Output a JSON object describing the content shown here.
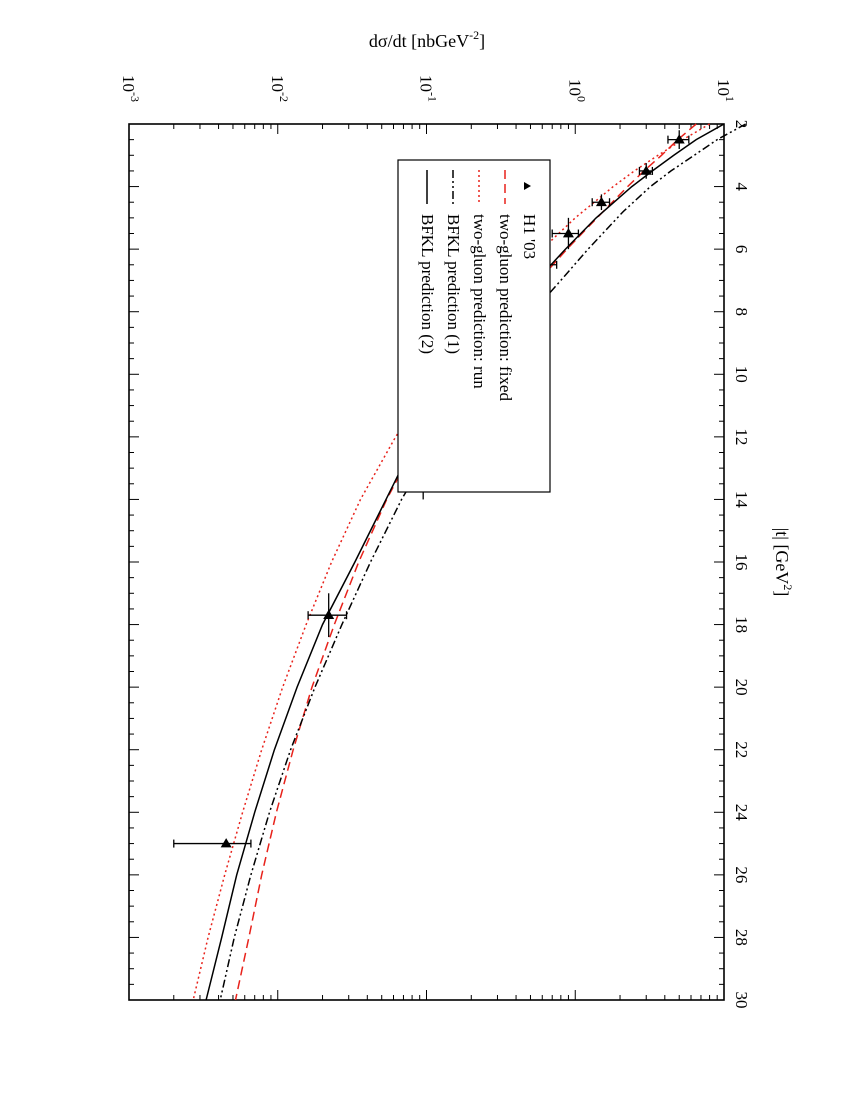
{
  "chart_data": {
    "type": "line",
    "orientation": "rotated 90 degrees clockwise",
    "xlabel": {
      "main": "|t|   [GeV",
      "sup": "2",
      "tail": "]"
    },
    "ylabel": {
      "main": "dσ/dt    [nbGeV",
      "sup": "-2",
      "tail": "]"
    },
    "xlim": [
      2,
      30
    ],
    "ylim": [
      0.001,
      10
    ],
    "yscale": "log",
    "x_ticks": [
      "2",
      "4",
      "6",
      "8",
      "10",
      "12",
      "14",
      "16",
      "18",
      "20",
      "22",
      "24",
      "26",
      "28",
      "30"
    ],
    "y_ticks": [
      {
        "base": "10",
        "exp": "-3"
      },
      {
        "base": "10",
        "exp": "-2"
      },
      {
        "base": "10",
        "exp": "-1"
      },
      {
        "base": "10",
        "exp": "0"
      },
      {
        "base": "10",
        "exp": "1"
      }
    ],
    "legend_position": "top-left",
    "series": [
      {
        "name": "H1 '03",
        "style": "points",
        "color": "#000000",
        "points": [
          {
            "x": 2.5,
            "y": 5.0,
            "yerr": [
              4.2,
              5.8
            ],
            "xerr": [
              2.2,
              2.8
            ]
          },
          {
            "x": 3.5,
            "y": 3.0,
            "yerr": [
              2.7,
              3.3
            ],
            "xerr": [
              3.25,
              3.75
            ]
          },
          {
            "x": 4.5,
            "y": 1.5,
            "yerr": [
              1.3,
              1.7
            ],
            "xerr": [
              4.25,
              4.75
            ]
          },
          {
            "x": 5.5,
            "y": 0.9,
            "yerr": [
              0.7,
              1.05
            ],
            "xerr": [
              5.0,
              6.0
            ]
          },
          {
            "x": 6.5,
            "y": 0.6,
            "yerr": [
              0.47,
              0.75
            ],
            "xerr": [
              6.0,
              7.0
            ]
          },
          {
            "x": 7.95,
            "y": 0.28,
            "yerr": [
              0.23,
              0.33
            ],
            "xerr": [
              7.0,
              9.0
            ]
          },
          {
            "x": 10.4,
            "y": 0.145,
            "yerr": [
              0.12,
              0.17
            ],
            "xerr": [
              9.9,
              10.9
            ]
          },
          {
            "x": 13.4,
            "y": 0.095,
            "yerr": [
              0.075,
              0.11
            ],
            "xerr": [
              12.8,
              14.0
            ]
          },
          {
            "x": 17.7,
            "y": 0.022,
            "yerr": [
              0.016,
              0.029
            ],
            "xerr": [
              17.0,
              18.4
            ]
          },
          {
            "x": 25.0,
            "y": 0.0045,
            "yerr": [
              0.002,
              0.0066
            ],
            "xerr": [
              24.9,
              25.1
            ]
          }
        ]
      },
      {
        "name": "two-gluon prediction: fixed",
        "style": "dashed",
        "color": "#e8221b",
        "x": [
          2,
          2.5,
          3,
          3.5,
          4,
          5,
          6,
          7,
          8,
          9,
          10,
          12,
          14,
          16,
          18,
          20,
          22,
          24,
          26,
          28,
          30
        ],
        "y": [
          6.5,
          4.9,
          3.8,
          2.9,
          2.25,
          1.4,
          0.88,
          0.57,
          0.37,
          0.25,
          0.17,
          0.09,
          0.054,
          0.035,
          0.024,
          0.017,
          0.0127,
          0.0098,
          0.0078,
          0.0064,
          0.0052
        ]
      },
      {
        "name": "two-gluon prediction: run",
        "style": "dotted",
        "color": "#e8221b",
        "x": [
          2,
          2.5,
          3,
          3.5,
          4,
          5,
          6,
          7,
          8,
          9,
          10,
          12,
          14,
          16,
          18,
          20,
          22,
          24,
          26,
          28,
          30
        ],
        "y": [
          8.0,
          5.3,
          3.6,
          2.5,
          1.8,
          1.0,
          0.6,
          0.38,
          0.25,
          0.17,
          0.118,
          0.062,
          0.036,
          0.023,
          0.0155,
          0.0108,
          0.0078,
          0.0058,
          0.0044,
          0.0034,
          0.0027
        ]
      },
      {
        "name": "BFKL prediction (1)",
        "style": "dashdot",
        "color": "#000000",
        "x": [
          2,
          2.5,
          3,
          3.5,
          4,
          4.8,
          6,
          7,
          8,
          9,
          10.4,
          12,
          14,
          16,
          18,
          20,
          22,
          24,
          26,
          28,
          30
        ],
        "y": [
          14.0,
          9.0,
          6.3,
          4.4,
          3.2,
          2.1,
          1.22,
          0.8,
          0.52,
          0.36,
          0.2,
          0.12,
          0.068,
          0.042,
          0.027,
          0.0178,
          0.0122,
          0.0088,
          0.0066,
          0.0051,
          0.0041
        ]
      },
      {
        "name": "BFKL prediction (2)",
        "style": "solid",
        "color": "#000000",
        "x": [
          2,
          2.5,
          3,
          3.5,
          4,
          5,
          6,
          7,
          8,
          9,
          10,
          11,
          13,
          16,
          18,
          20,
          22,
          24,
          26,
          28,
          30
        ],
        "y": [
          10.0,
          6.5,
          4.6,
          3.3,
          2.4,
          1.38,
          0.86,
          0.55,
          0.37,
          0.25,
          0.175,
          0.118,
          0.068,
          0.033,
          0.02,
          0.0135,
          0.0095,
          0.007,
          0.0053,
          0.0042,
          0.0033
        ]
      }
    ]
  }
}
